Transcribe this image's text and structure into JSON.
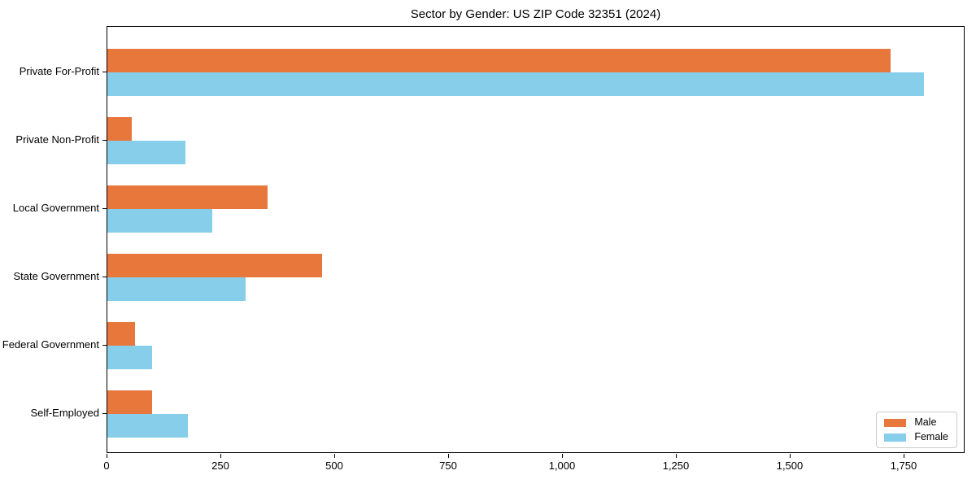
{
  "title": "Sector by Gender: US ZIP Code 32351 (2024)",
  "chart_data": {
    "type": "bar",
    "orientation": "horizontal",
    "title": "Sector by Gender: US ZIP Code 32351 (2024)",
    "xlabel": "",
    "ylabel": "",
    "categories": [
      "Private For-Profit",
      "Private Non-Profit",
      "Local Government",
      "State Government",
      "Federal Government",
      "Self-Employed"
    ],
    "series": [
      {
        "name": "Male",
        "color": "#e8773c",
        "values": [
          1720,
          54,
          351,
          471,
          61,
          98
        ]
      },
      {
        "name": "Female",
        "color": "#87ceeb",
        "values": [
          1793,
          171,
          230,
          303,
          98,
          177
        ]
      }
    ],
    "xlim": [
      0,
      1884
    ],
    "x_ticks": [
      0,
      250,
      500,
      750,
      1000,
      1250,
      1500,
      1750
    ],
    "x_tick_labels": [
      "0",
      "250",
      "500",
      "750",
      "1,000",
      "1,250",
      "1,500",
      "1,750"
    ],
    "grid": false,
    "legend": {
      "position": "lower right",
      "entries": [
        "Male",
        "Female"
      ]
    }
  }
}
